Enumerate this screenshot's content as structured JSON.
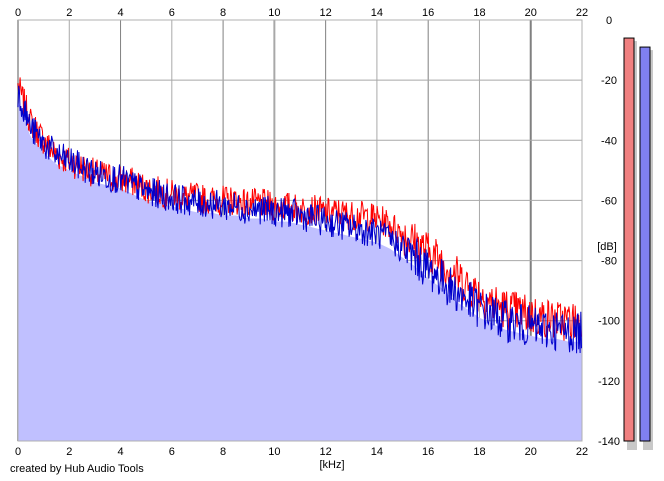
{
  "chart_data": {
    "type": "area",
    "title": "",
    "xlabel": "[kHz]",
    "ylabel": "[dB]",
    "xlim": [
      0,
      22
    ],
    "ylim": [
      -140,
      0
    ],
    "x_ticks": [
      0,
      2,
      4,
      6,
      8,
      10,
      12,
      14,
      16,
      18,
      20,
      22
    ],
    "y_ticks": [
      0,
      -20,
      -40,
      -60,
      -80,
      -100,
      -120,
      -140
    ],
    "x_tick_labels": [
      "0",
      "2",
      "4",
      "6",
      "8",
      "10",
      "12",
      "14",
      "16",
      "18",
      "20",
      "22"
    ],
    "y_tick_labels": [
      "0",
      "-20",
      "-40",
      "-60",
      "-80",
      "-100",
      "-120",
      "-140"
    ],
    "grid": true,
    "series": [
      {
        "color": "#ff0000",
        "x": [
          0,
          0.25,
          0.5,
          1,
          1.5,
          2,
          2.5,
          3,
          3.5,
          4,
          4.5,
          5,
          5.5,
          6,
          6.5,
          7,
          7.5,
          8,
          8.5,
          9,
          9.5,
          10,
          10.5,
          11,
          11.5,
          12,
          12.5,
          13,
          13.5,
          14,
          14.5,
          15,
          15.5,
          16,
          16.5,
          17,
          17.5,
          18,
          18.5,
          19,
          19.5,
          20,
          20.5,
          21,
          21.5,
          22
        ],
        "values": [
          -22,
          -28,
          -34,
          -40,
          -45,
          -47,
          -49,
          -51,
          -52,
          -53,
          -54,
          -56,
          -57,
          -58,
          -59,
          -59,
          -60,
          -60,
          -60,
          -61,
          -61,
          -62,
          -62,
          -63,
          -63,
          -64,
          -64,
          -65,
          -65,
          -66,
          -68,
          -71,
          -74,
          -77,
          -80,
          -84,
          -88,
          -91,
          -94,
          -96,
          -97,
          -98,
          -99,
          -100,
          -100,
          -101
        ]
      },
      {
        "color": "#0000cc",
        "x": [
          0,
          0.25,
          0.5,
          1,
          1.5,
          2,
          2.5,
          3,
          3.5,
          4,
          4.5,
          5,
          5.5,
          6,
          6.5,
          7,
          7.5,
          8,
          8.5,
          9,
          9.5,
          10,
          10.5,
          11,
          11.5,
          12,
          12.5,
          13,
          13.5,
          14,
          14.5,
          15,
          15.5,
          16,
          16.5,
          17,
          17.5,
          18,
          18.5,
          19,
          19.5,
          20,
          20.5,
          21,
          21.5,
          22
        ],
        "values": [
          -24,
          -30,
          -36,
          -41,
          -45,
          -47,
          -49,
          -51,
          -52,
          -53,
          -55,
          -57,
          -58,
          -59,
          -60,
          -61,
          -61,
          -62,
          -62,
          -63,
          -63,
          -64,
          -64,
          -65,
          -66,
          -67,
          -68,
          -69,
          -70,
          -71,
          -73,
          -76,
          -79,
          -83,
          -86,
          -90,
          -93,
          -96,
          -98,
          -100,
          -101,
          -102,
          -103,
          -103,
          -104,
          -104
        ]
      }
    ],
    "level_meters": [
      {
        "color": "#f08080",
        "top_db": -6
      },
      {
        "color": "#8080f0",
        "top_db": -9
      }
    ],
    "noise_seed": 7
  },
  "credit": "created by Hub Audio Tools"
}
